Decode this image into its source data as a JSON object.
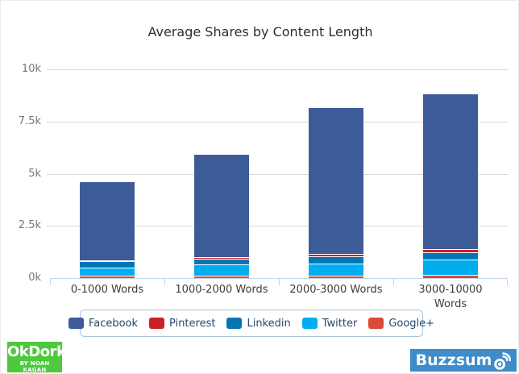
{
  "chart_data": {
    "type": "bar",
    "stacked": true,
    "title": "Average Shares by Content Length",
    "categories": [
      "0-1000 Words",
      "1000-2000 Words",
      "2000-3000 Words",
      "3000-10000 Words"
    ],
    "series": [
      {
        "name": "Facebook",
        "color": "#3d5b97",
        "values": [
          3750,
          4950,
          7050,
          7450
        ]
      },
      {
        "name": "Pinterest",
        "color": "#cb2027",
        "values": [
          60,
          70,
          80,
          155
        ]
      },
      {
        "name": "Linkedin",
        "color": "#0077b5",
        "values": [
          290,
          280,
          360,
          350
        ]
      },
      {
        "name": "Twitter",
        "color": "#00aeef",
        "values": [
          400,
          520,
          580,
          735
        ]
      },
      {
        "name": "Google+",
        "color": "#dc4a38",
        "values": [
          115,
          120,
          120,
          155
        ]
      }
    ],
    "stack_order_bottom_to_top": [
      "Google+",
      "Twitter",
      "Linkedin",
      "Pinterest",
      "Facebook"
    ],
    "approx_totals": [
      4615,
      5940,
      8190,
      8845
    ],
    "ytick_labels": [
      "0k",
      "2.5k",
      "5k",
      "7.5k",
      "10k"
    ],
    "ytick_values": [
      0,
      2500,
      5000,
      7500,
      10000
    ],
    "ylim": [
      0,
      10000
    ],
    "grid": true,
    "legend_position": "bottom",
    "last_category_two_lines": true
  },
  "branding": {
    "okdork": {
      "line1": "OkDork",
      "line2": "BY NOAH KAGAN",
      "bg": "#4dc83f"
    },
    "buzzsumo": {
      "visible_text": "Buzzsum",
      "wordmark": "Buzzsumo",
      "icon": "sonar-o-icon",
      "bg": "#3e8cca"
    }
  }
}
